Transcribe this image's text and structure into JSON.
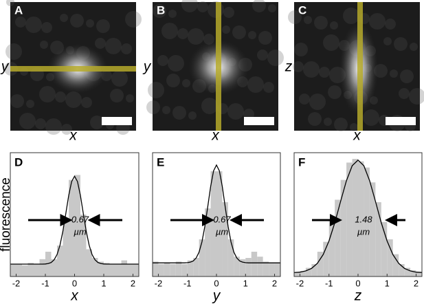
{
  "images": [
    {
      "label": "A",
      "xlabel": "x",
      "ylabel": "y"
    },
    {
      "label": "B",
      "xlabel": "x",
      "ylabel": "y"
    },
    {
      "label": "C",
      "xlabel": "x",
      "ylabel": "z"
    }
  ],
  "chart_data": [
    {
      "type": "histogram",
      "label": "D",
      "xlabel": "x",
      "ylabel": "fluorescence",
      "xlim": [
        -2.2,
        2.2
      ],
      "ylim": [
        0,
        1
      ],
      "xticks": [
        -2,
        -1,
        0,
        1,
        2
      ],
      "bins": [
        -2.2,
        -2.0,
        -1.8,
        -1.6,
        -1.4,
        -1.2,
        -1.0,
        -0.8,
        -0.6,
        -0.4,
        -0.2,
        0,
        0.2,
        0.4,
        0.6,
        0.8,
        1.0,
        1.2,
        1.4,
        1.6,
        1.8,
        2.0,
        2.2
      ],
      "counts": [
        0.1,
        0.1,
        0.09,
        0.11,
        0.1,
        0.14,
        0.2,
        0.14,
        0.25,
        0.45,
        0.78,
        0.82,
        0.5,
        0.22,
        0.15,
        0.12,
        0.11,
        0.1,
        0.1,
        0.13,
        0.1,
        0.1
      ],
      "bar_color": "#c8c8c8",
      "fit": {
        "color": "#000000",
        "x": [
          -2.2,
          -1.2,
          -1.1,
          -1.0,
          -0.9,
          -0.8,
          -0.7,
          -0.6,
          -0.5,
          -0.4,
          -0.3,
          -0.2,
          -0.1,
          0,
          0.1,
          0.2,
          0.3,
          0.4,
          0.5,
          0.6,
          0.7,
          0.8,
          0.9,
          1.0,
          1.1,
          1.2,
          2.2
        ],
        "values": [
          0.1,
          0.1,
          0.1,
          0.101,
          0.105,
          0.113,
          0.135,
          0.177,
          0.252,
          0.365,
          0.508,
          0.655,
          0.767,
          0.81,
          0.767,
          0.655,
          0.508,
          0.365,
          0.252,
          0.177,
          0.135,
          0.113,
          0.105,
          0.101,
          0.1,
          0.1,
          0.1
        ]
      },
      "fwhm_label": "0.67",
      "fwhm_unit": "µm"
    },
    {
      "type": "histogram",
      "label": "E",
      "xlabel": "y",
      "xlim": [
        -2.2,
        2.2
      ],
      "ylim": [
        0,
        1
      ],
      "xticks": [
        -2,
        -1,
        0,
        1,
        2
      ],
      "bins": [
        -2.2,
        -2.0,
        -1.8,
        -1.6,
        -1.4,
        -1.2,
        -1.0,
        -0.8,
        -0.6,
        -0.4,
        -0.2,
        0,
        0.2,
        0.4,
        0.6,
        0.8,
        1.0,
        1.2,
        1.4,
        1.6,
        1.8,
        2.0,
        2.2
      ],
      "counts": [
        0.12,
        0.1,
        0.11,
        0.1,
        0.12,
        0.1,
        0.13,
        0.15,
        0.3,
        0.55,
        0.85,
        0.85,
        0.6,
        0.3,
        0.16,
        0.14,
        0.15,
        0.2,
        0.16,
        0.12,
        0.11,
        0.11
      ],
      "bar_color": "#c8c8c8",
      "fit": {
        "color": "#000000",
        "x": [
          -2.2,
          -1.2,
          -1.1,
          -1.0,
          -0.9,
          -0.8,
          -0.7,
          -0.6,
          -0.5,
          -0.4,
          -0.3,
          -0.2,
          -0.1,
          0,
          0.1,
          0.2,
          0.3,
          0.4,
          0.5,
          0.6,
          0.7,
          0.8,
          0.9,
          1.0,
          1.1,
          1.2,
          2.2
        ],
        "values": [
          0.11,
          0.11,
          0.11,
          0.112,
          0.116,
          0.125,
          0.149,
          0.196,
          0.279,
          0.405,
          0.564,
          0.728,
          0.853,
          0.9,
          0.853,
          0.728,
          0.564,
          0.405,
          0.279,
          0.196,
          0.149,
          0.125,
          0.116,
          0.112,
          0.11,
          0.11,
          0.11
        ]
      },
      "fwhm_label": "0.67",
      "fwhm_unit": "µm"
    },
    {
      "type": "histogram",
      "label": "F",
      "xlabel": "z",
      "xlim": [
        -2.2,
        2.2
      ],
      "ylim": [
        0,
        1
      ],
      "xticks": [
        -2,
        -1,
        0,
        1,
        2
      ],
      "bins": [
        -2.2,
        -2.0,
        -1.8,
        -1.6,
        -1.4,
        -1.2,
        -1.0,
        -0.8,
        -0.6,
        -0.4,
        -0.2,
        0,
        0.2,
        0.4,
        0.6,
        0.8,
        1.0,
        1.2,
        1.4,
        1.6,
        1.8,
        2.0,
        2.2
      ],
      "counts": [
        0.035,
        0.045,
        0.07,
        0.1,
        0.2,
        0.28,
        0.45,
        0.62,
        0.78,
        0.92,
        0.95,
        0.93,
        0.88,
        0.76,
        0.6,
        0.44,
        0.3,
        0.18,
        0.1,
        0.07,
        0.05,
        0.04
      ],
      "bar_color": "#c8c8c8",
      "fit": {
        "color": "#000000",
        "x": [
          -2.2,
          -2.0,
          -1.8,
          -1.6,
          -1.4,
          -1.2,
          -1.0,
          -0.8,
          -0.6,
          -0.4,
          -0.2,
          0,
          0.2,
          0.4,
          0.6,
          0.8,
          1.0,
          1.2,
          1.4,
          1.6,
          1.8,
          2.0,
          2.2
        ],
        "values": [
          0.032,
          0.035,
          0.045,
          0.065,
          0.106,
          0.177,
          0.287,
          0.434,
          0.607,
          0.773,
          0.895,
          0.94,
          0.895,
          0.773,
          0.607,
          0.434,
          0.287,
          0.177,
          0.106,
          0.065,
          0.045,
          0.035,
          0.032
        ]
      },
      "fwhm_label": "1.48",
      "fwhm_unit": "µm"
    }
  ]
}
